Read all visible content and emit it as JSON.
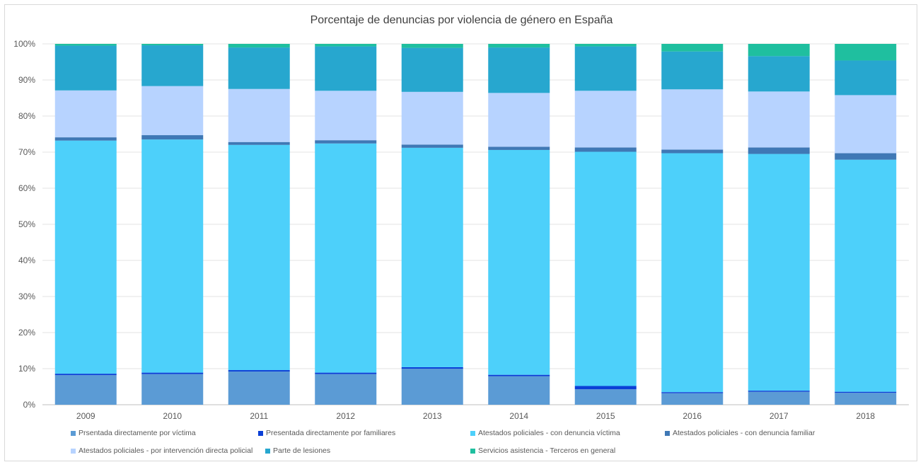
{
  "chart_data": {
    "type": "bar",
    "stacked": true,
    "title": "Porcentaje de denuncias por violencia de género en España",
    "categories": [
      "2009",
      "2010",
      "2011",
      "2012",
      "2013",
      "2014",
      "2015",
      "2016",
      "2017",
      "2018"
    ],
    "y_ticks": [
      "0%",
      "10%",
      "20%",
      "30%",
      "40%",
      "50%",
      "60%",
      "70%",
      "80%",
      "90%",
      "100%"
    ],
    "ylim": [
      0,
      100
    ],
    "grid": true,
    "legend_position": "bottom",
    "series": [
      {
        "name": "Prsentada directamente por víctima",
        "color": "#5b9bd5",
        "values": [
          8.2,
          8.5,
          9.2,
          8.5,
          10.0,
          7.9,
          4.3,
          3.2,
          3.6,
          3.3
        ]
      },
      {
        "name": "Presentada directamente por familiares",
        "color": "#0b3fd6",
        "values": [
          0.4,
          0.4,
          0.4,
          0.4,
          0.4,
          0.4,
          0.9,
          0.3,
          0.3,
          0.3
        ]
      },
      {
        "name": "Atestados policiales - con denuncia víctima",
        "color": "#4dd0fa",
        "values": [
          64.6,
          64.6,
          62.4,
          63.5,
          60.8,
          62.3,
          64.9,
          66.2,
          65.6,
          64.3
        ]
      },
      {
        "name": "Atestados policiales - con denuncia familiar",
        "color": "#3f78b5",
        "values": [
          0.9,
          1.2,
          0.8,
          0.9,
          0.9,
          0.9,
          1.2,
          1.0,
          1.8,
          1.8
        ]
      },
      {
        "name": "Atestados policiales - por intervención directa policial",
        "color": "#b7d3ff",
        "values": [
          13.0,
          13.6,
          14.7,
          13.7,
          14.6,
          14.9,
          15.7,
          16.7,
          15.5,
          16.1
        ]
      },
      {
        "name": "Parte de lesiones",
        "color": "#27a7cf",
        "values": [
          12.4,
          11.3,
          11.5,
          12.3,
          12.2,
          12.6,
          12.3,
          10.5,
          9.8,
          9.6
        ]
      },
      {
        "name": "Servicios asistencia - Terceros en general",
        "color": "#1fbf9f",
        "values": [
          0.5,
          0.4,
          1.0,
          0.7,
          1.1,
          1.0,
          0.7,
          2.1,
          3.4,
          4.6
        ]
      }
    ]
  }
}
